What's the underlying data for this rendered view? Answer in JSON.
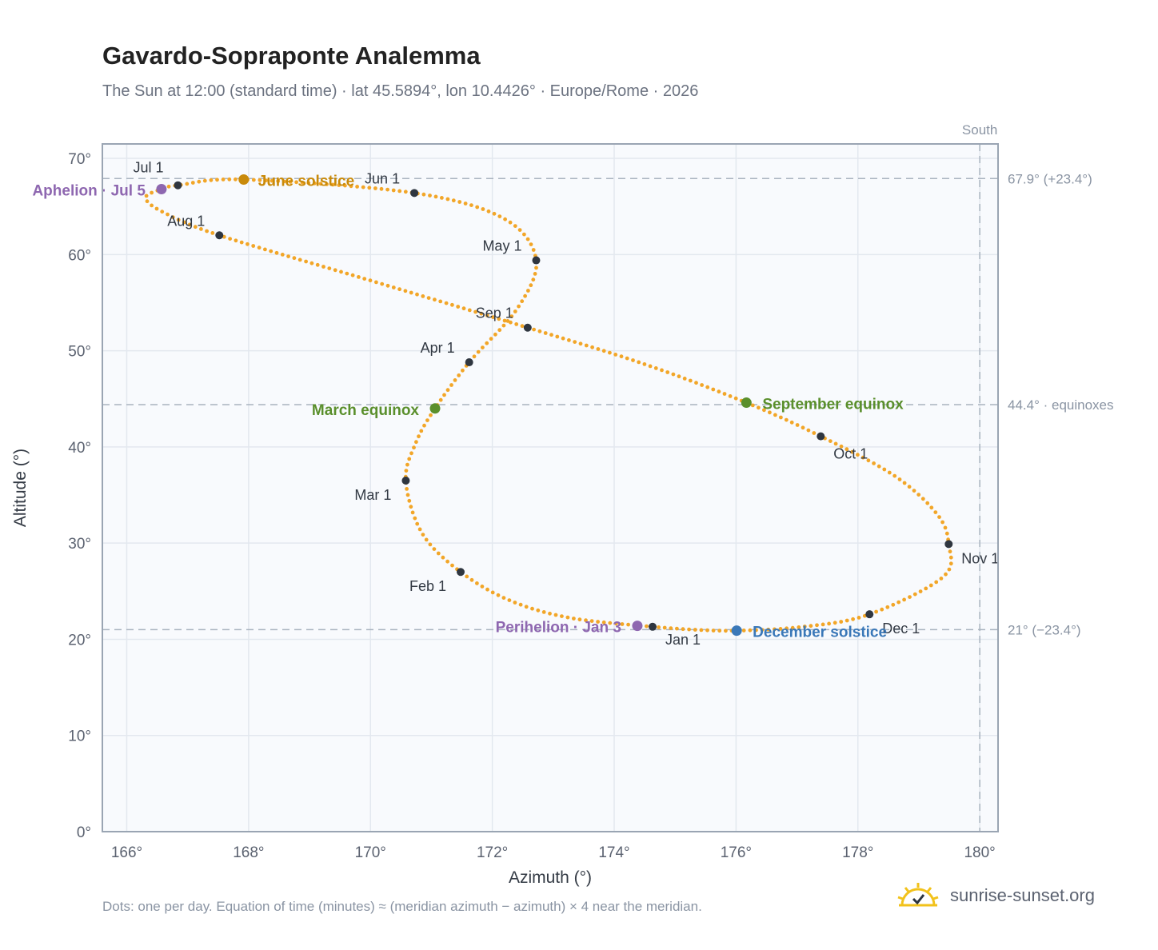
{
  "header": {
    "title": "Gavardo-Sopraponte Analemma",
    "subtitle": "The Sun at 12:00 (standard time) · lat 45.5894°, lon 10.4426° · Europe/Rome · 2026"
  },
  "footer": {
    "note": "Dots: one per day. Equation of time (minutes) ≈ (meridian azimuth − azimuth) × 4 near the meridian.",
    "brand": "sunrise-sunset.org"
  },
  "colors": {
    "curve": "#f2a628",
    "marker": "#2f3640",
    "june": "#c98a0a",
    "equinox": "#5a8f2c",
    "december": "#3a78b8",
    "apsis": "#8e67b0"
  },
  "chart_data": {
    "type": "scatter",
    "xlabel": "Azimuth (°)",
    "ylabel": "Altitude (°)",
    "xlim": [
      165.6,
      180.3
    ],
    "ylim": [
      0,
      71.5
    ],
    "x_ticks": [
      "166°",
      "168°",
      "170°",
      "172°",
      "174°",
      "176°",
      "178°",
      "180°"
    ],
    "x_tick_values": [
      166,
      168,
      170,
      172,
      174,
      176,
      178,
      180
    ],
    "y_ticks": [
      "0°",
      "10°",
      "20°",
      "30°",
      "40°",
      "50°",
      "60°",
      "70°"
    ],
    "y_tick_values": [
      0,
      10,
      20,
      30,
      40,
      50,
      60,
      70
    ],
    "grid": true,
    "reference_lines": [
      {
        "axis": "y",
        "value": 67.9,
        "label": "67.9° (+23.4°)"
      },
      {
        "axis": "y",
        "value": 44.4,
        "label": "44.4° · equinoxes"
      },
      {
        "axis": "y",
        "value": 21.0,
        "label": "21° (−23.4°)"
      },
      {
        "axis": "x",
        "value": 180,
        "label": "South"
      }
    ],
    "month_markers": [
      {
        "label": "Jan 1",
        "x": 174.63,
        "y": 21.3
      },
      {
        "label": "Feb 1",
        "x": 171.48,
        "y": 27.0
      },
      {
        "label": "Mar 1",
        "x": 170.58,
        "y": 36.5
      },
      {
        "label": "Apr 1",
        "x": 171.62,
        "y": 48.8
      },
      {
        "label": "May 1",
        "x": 172.72,
        "y": 59.4
      },
      {
        "label": "Jun 1",
        "x": 170.72,
        "y": 66.4
      },
      {
        "label": "Jul 1",
        "x": 166.84,
        "y": 67.2
      },
      {
        "label": "Aug 1",
        "x": 167.52,
        "y": 62.0
      },
      {
        "label": "Sep 1",
        "x": 172.58,
        "y": 52.4
      },
      {
        "label": "Oct 1",
        "x": 177.39,
        "y": 41.1
      },
      {
        "label": "Nov 1",
        "x": 179.49,
        "y": 29.9
      },
      {
        "label": "Dec 1",
        "x": 178.19,
        "y": 22.6
      }
    ],
    "events": [
      {
        "label": "June solstice",
        "x": 167.92,
        "y": 67.8,
        "color": "#c98a0a"
      },
      {
        "label": "March equinox",
        "x": 171.06,
        "y": 44.0,
        "color": "#5a8f2c"
      },
      {
        "label": "September equinox",
        "x": 176.17,
        "y": 44.6,
        "color": "#5a8f2c"
      },
      {
        "label": "December solstice",
        "x": 176.01,
        "y": 20.9,
        "color": "#3a78b8"
      },
      {
        "label": "Aphelion · Jul 5",
        "x": 166.57,
        "y": 66.8,
        "color": "#8e67b0"
      },
      {
        "label": "Perihelion · Jan 3",
        "x": 174.38,
        "y": 21.4,
        "color": "#8e67b0"
      }
    ],
    "path_key_points": [
      {
        "x": 174.63,
        "y": 21.3
      },
      {
        "x": 173.3,
        "y": 22.2
      },
      {
        "x": 172.3,
        "y": 24.0
      },
      {
        "x": 171.48,
        "y": 27.0
      },
      {
        "x": 170.85,
        "y": 31.0
      },
      {
        "x": 170.58,
        "y": 36.5
      },
      {
        "x": 170.75,
        "y": 40.5
      },
      {
        "x": 171.06,
        "y": 44.0
      },
      {
        "x": 171.62,
        "y": 48.8
      },
      {
        "x": 172.4,
        "y": 54.3
      },
      {
        "x": 172.72,
        "y": 59.4
      },
      {
        "x": 172.2,
        "y": 63.7
      },
      {
        "x": 170.72,
        "y": 66.4
      },
      {
        "x": 167.92,
        "y": 67.8
      },
      {
        "x": 166.84,
        "y": 67.2
      },
      {
        "x": 166.57,
        "y": 66.8
      },
      {
        "x": 166.31,
        "y": 65.9
      },
      {
        "x": 166.6,
        "y": 64.4
      },
      {
        "x": 167.52,
        "y": 62.0
      },
      {
        "x": 170.0,
        "y": 57.3
      },
      {
        "x": 172.58,
        "y": 52.4
      },
      {
        "x": 174.5,
        "y": 48.6
      },
      {
        "x": 176.17,
        "y": 44.6
      },
      {
        "x": 177.39,
        "y": 41.1
      },
      {
        "x": 178.6,
        "y": 37.0
      },
      {
        "x": 179.3,
        "y": 33.0
      },
      {
        "x": 179.49,
        "y": 29.9
      },
      {
        "x": 179.4,
        "y": 26.5
      },
      {
        "x": 178.19,
        "y": 22.6
      },
      {
        "x": 177.1,
        "y": 21.3
      },
      {
        "x": 176.01,
        "y": 20.9
      },
      {
        "x": 175.3,
        "y": 21.0
      },
      {
        "x": 174.63,
        "y": 21.3
      }
    ]
  }
}
